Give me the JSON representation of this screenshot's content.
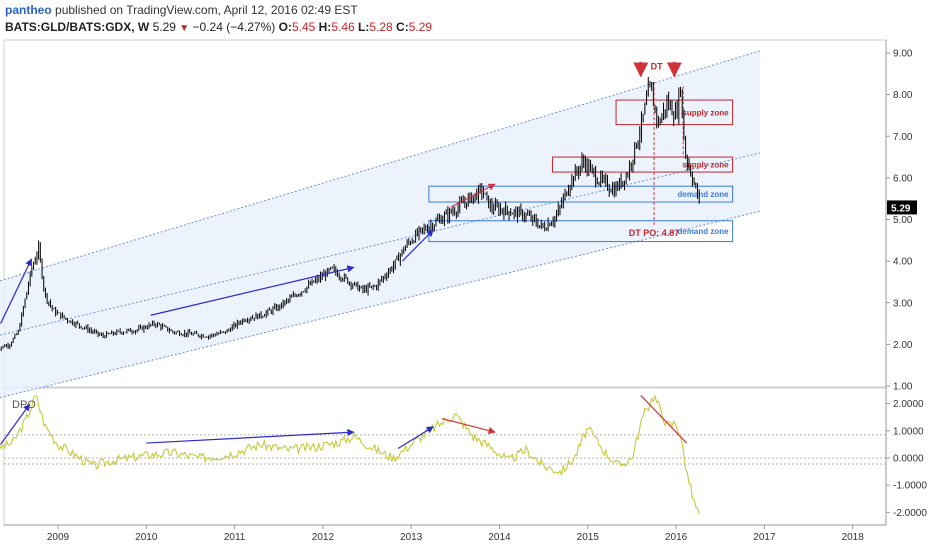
{
  "header": {
    "user": "pantheo",
    "published": "published on TradingView.com, April 12, 2016 02:49 EST",
    "symbol": "BATS:GLD/BATS:GDX, W",
    "last": "5.29",
    "change": "−0.24 (−4.27%)",
    "open_label": "O:",
    "open": "5.45",
    "high_label": "H:",
    "high": "5.46",
    "low_label": "L:",
    "low": "5.28",
    "close_label": "C:",
    "close": "5.29"
  },
  "colors": {
    "up": "#000000",
    "channel_fill": "#e9f0fb",
    "channel_line": "#6d8fd4",
    "supply": "#c0262d",
    "demand": "#3a7bd5",
    "blue_arrow": "#2c2cc8",
    "red_arrow": "#d0343a",
    "dpo_line": "#c5c93a",
    "last_badge": "#000000"
  },
  "chart_data": [
    {
      "type": "line",
      "title": "",
      "x_ticks": [
        "2009",
        "2010",
        "2011",
        "2012",
        "2013",
        "2014",
        "2015",
        "2016",
        "2017",
        "2018"
      ],
      "y_ticks": [
        "9.00",
        "8.00",
        "7.00",
        "6.00",
        "5.00",
        "4.00",
        "3.00",
        "2.00",
        "1.00"
      ],
      "ylim": [
        1.0,
        9.2
      ],
      "last_value": "5.29",
      "series": [
        {
          "x": [
            2008.3,
            2008.45,
            2008.55,
            2008.7,
            2008.78,
            2008.85,
            2008.95,
            2009.1,
            2009.3,
            2009.5,
            2009.7,
            2009.9,
            2010.1,
            2010.3,
            2010.5,
            2010.7,
            2010.9,
            2011.1,
            2011.3,
            2011.5,
            2011.7,
            2011.9,
            2012.1,
            2012.3,
            2012.45,
            2012.6,
            2012.8,
            2012.95,
            2013.1,
            2013.25,
            2013.4,
            2013.6,
            2013.8,
            2013.9,
            2014.1,
            2014.3,
            2014.5,
            2014.65,
            2014.8,
            2014.95,
            2015.1,
            2015.3,
            2015.45,
            2015.6,
            2015.7,
            2015.8,
            2015.9,
            2016.0,
            2016.05,
            2016.1,
            2016.2,
            2016.28
          ],
          "values": [
            1.9,
            2.0,
            2.3,
            3.8,
            4.3,
            3.2,
            2.8,
            2.6,
            2.4,
            2.2,
            2.3,
            2.35,
            2.5,
            2.3,
            2.25,
            2.2,
            2.3,
            2.6,
            2.7,
            2.9,
            3.2,
            3.5,
            3.8,
            3.5,
            3.3,
            3.4,
            3.9,
            4.4,
            4.7,
            4.9,
            5.1,
            5.4,
            5.7,
            5.3,
            5.2,
            5.1,
            4.8,
            5.1,
            5.9,
            6.4,
            6.0,
            5.7,
            6.1,
            7.2,
            8.2,
            7.3,
            7.8,
            7.5,
            8.2,
            6.6,
            5.9,
            5.29
          ]
        }
      ],
      "annotations": [
        {
          "type": "arrow",
          "color": "blue",
          "from": [
            2008.35,
            2.5
          ],
          "to": [
            2008.7,
            4.05
          ]
        },
        {
          "type": "arrow",
          "color": "blue",
          "from": [
            2010.05,
            2.7
          ],
          "to": [
            2012.35,
            3.85
          ]
        },
        {
          "type": "arrow",
          "color": "blue",
          "from": [
            2012.9,
            4.0
          ],
          "to": [
            2013.25,
            4.75
          ]
        },
        {
          "type": "arrow",
          "color": "red",
          "from": [
            2013.45,
            5.3
          ],
          "to": [
            2013.95,
            5.85
          ]
        },
        {
          "type": "down-arrow",
          "color": "red",
          "at": [
            2015.6,
            8.45
          ]
        },
        {
          "type": "down-arrow",
          "color": "red",
          "at": [
            2015.98,
            8.45
          ]
        },
        {
          "type": "vline-dashed",
          "color": "red",
          "x": 2015.75,
          "from": 4.87,
          "to": 8.3
        },
        {
          "type": "vline-dashed",
          "color": "red",
          "x": 2016.08,
          "from": 6.5,
          "to": 8.2
        }
      ],
      "zones": [
        {
          "label": "supply zone",
          "kind": "supply",
          "x0": 2015.32,
          "x1": 2016.64,
          "y0": 7.28,
          "y1": 7.87
        },
        {
          "label": "supply zone",
          "kind": "supply",
          "x0": 2014.6,
          "x1": 2016.64,
          "y0": 6.14,
          "y1": 6.5
        },
        {
          "label": "demand zone",
          "kind": "demand",
          "x0": 2013.2,
          "x1": 2016.64,
          "y0": 5.42,
          "y1": 5.8
        },
        {
          "label": "demand zone",
          "kind": "demand",
          "x0": 2013.2,
          "x1": 2016.64,
          "y0": 4.47,
          "y1": 4.97
        }
      ],
      "text_labels": [
        {
          "text": "DT",
          "x": 2015.78,
          "y": 8.6
        },
        {
          "text": "DT PO: 4.87",
          "x": 2015.75,
          "y": 4.6
        }
      ]
    },
    {
      "type": "line",
      "title": "DPO",
      "ylim": [
        -2.35,
        2.5
      ],
      "y_ticks": [
        "2.0000",
        "1.0000",
        "0.0000",
        "-1.0000",
        "-2.0000"
      ],
      "series": [
        {
          "name": "DPO",
          "x": [
            2008.3,
            2008.5,
            2008.65,
            2008.75,
            2008.85,
            2009.0,
            2009.2,
            2009.4,
            2009.6,
            2009.8,
            2010.0,
            2010.3,
            2010.6,
            2010.9,
            2011.1,
            2011.3,
            2011.6,
            2011.9,
            2012.2,
            2012.35,
            2012.6,
            2012.8,
            2013.0,
            2013.2,
            2013.4,
            2013.5,
            2013.7,
            2013.9,
            2014.1,
            2014.3,
            2014.5,
            2014.7,
            2014.85,
            2015.0,
            2015.2,
            2015.35,
            2015.5,
            2015.62,
            2015.75,
            2015.9,
            2016.0,
            2016.05,
            2016.12,
            2016.2,
            2016.28
          ],
          "values": [
            0.3,
            0.6,
            1.5,
            2.3,
            1.2,
            0.5,
            0.1,
            -0.3,
            -0.1,
            0.0,
            0.1,
            0.2,
            0.0,
            0.1,
            0.3,
            0.5,
            0.3,
            0.4,
            0.6,
            0.8,
            0.3,
            0.0,
            0.5,
            1.0,
            1.4,
            1.6,
            0.8,
            0.4,
            -0.1,
            0.3,
            -0.3,
            -0.5,
            0.0,
            1.1,
            0.2,
            -0.3,
            0.0,
            1.5,
            2.3,
            1.2,
            1.3,
            0.8,
            -0.5,
            -1.6,
            -2.2
          ]
        }
      ],
      "annotations": [
        {
          "type": "arrow",
          "color": "blue",
          "from": [
            2008.35,
            0.5
          ],
          "to": [
            2008.68,
            1.98
          ]
        },
        {
          "type": "arrow",
          "color": "blue",
          "from": [
            2010.0,
            0.55
          ],
          "to": [
            2012.35,
            0.95
          ]
        },
        {
          "type": "arrow",
          "color": "blue",
          "from": [
            2012.85,
            0.35
          ],
          "to": [
            2013.25,
            1.15
          ]
        },
        {
          "type": "arrow",
          "color": "red",
          "from": [
            2013.35,
            1.45
          ],
          "to": [
            2013.95,
            0.95
          ]
        },
        {
          "type": "line",
          "color": "red",
          "from": [
            2015.6,
            2.3
          ],
          "to": [
            2016.12,
            0.55
          ]
        }
      ]
    }
  ]
}
